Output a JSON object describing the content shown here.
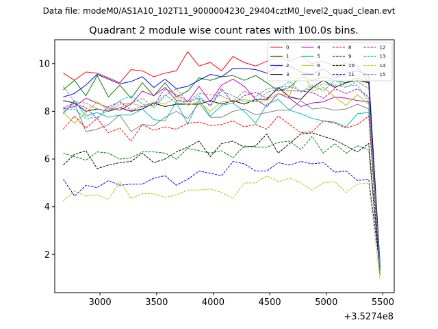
{
  "header_text": "Data file: modeM0/AS1A10_102T11_9000004230_29404cztM0_level2_quad_clean.evt",
  "chart_data": {
    "type": "line",
    "title": "Quadrant 2 module wise count rates with 100.0s bins.",
    "xlabel": "",
    "ylabel": "",
    "x_offset_label": "+3.5274e8",
    "xlim": [
      2600,
      5600
    ],
    "ylim": [
      0.4,
      11.0
    ],
    "x_ticks": [
      3000,
      3500,
      4000,
      4500,
      5000,
      5500
    ],
    "y_ticks": [
      2,
      4,
      6,
      8,
      10
    ],
    "grid": false,
    "legend_placement": "top-right",
    "x": [
      2675,
      2775,
      2875,
      2975,
      3075,
      3175,
      3275,
      3375,
      3475,
      3575,
      3675,
      3775,
      3875,
      3975,
      4075,
      4175,
      4275,
      4375,
      4475,
      4575,
      4675,
      4775,
      4875,
      4975,
      5075,
      5175,
      5275,
      5375,
      5475
    ],
    "series": [
      {
        "name": "0",
        "color": "#ff0000",
        "dash": "solid",
        "values": [
          9.6,
          9.3,
          9.65,
          9.6,
          9.4,
          9.2,
          9.75,
          9.7,
          9.45,
          9.6,
          9.7,
          10.5,
          9.9,
          10.05,
          9.7,
          10.3,
          10.05,
          9.9,
          10.1,
          10.3,
          10.1,
          10.3,
          10.0,
          10.1,
          9.9,
          10.0,
          9.9,
          9.2,
          1.5
        ]
      },
      {
        "name": "1",
        "color": "#008000",
        "dash": "solid",
        "values": [
          8.9,
          9.3,
          8.65,
          9.5,
          8.6,
          9.1,
          8.55,
          9.2,
          8.65,
          9.2,
          8.6,
          8.85,
          9.4,
          9.3,
          9.45,
          9.5,
          9.3,
          9.5,
          9.2,
          8.85,
          9.0,
          9.45,
          9.3,
          9.45,
          9.3,
          9.2,
          9.4,
          9.2,
          1.6
        ]
      },
      {
        "name": "2",
        "color": "#0000ff",
        "dash": "solid",
        "values": [
          8.6,
          8.75,
          9.1,
          9.55,
          9.35,
          9.15,
          9.25,
          9.45,
          9.0,
          9.35,
          8.95,
          9.05,
          9.3,
          9.55,
          9.45,
          9.8,
          9.8,
          9.75,
          9.6,
          9.9,
          9.9,
          9.65,
          9.55,
          9.8,
          9.4,
          9.6,
          9.7,
          9.5,
          1.55
        ]
      },
      {
        "name": "3",
        "color": "#000000",
        "dash": "solid",
        "values": [
          8.45,
          8.35,
          8.0,
          8.1,
          8.0,
          8.15,
          8.0,
          8.1,
          8.35,
          8.2,
          8.3,
          8.3,
          8.3,
          8.45,
          8.3,
          8.45,
          8.3,
          8.5,
          8.5,
          9.0,
          8.6,
          8.5,
          9.0,
          9.3,
          9.0,
          9.2,
          9.3,
          9.2,
          1.45
        ]
      },
      {
        "name": "4",
        "color": "#bf00bf",
        "dash": "solid",
        "values": [
          8.1,
          8.2,
          8.55,
          8.35,
          8.15,
          8.05,
          8.3,
          8.85,
          8.65,
          9.0,
          8.45,
          8.4,
          9.05,
          8.4,
          9.1,
          9.35,
          9.05,
          8.5,
          8.2,
          8.75,
          8.55,
          8.2,
          8.35,
          8.4,
          8.6,
          8.55,
          8.45,
          8.4,
          1.5
        ]
      },
      {
        "name": "5",
        "color": "#00bfbf",
        "dash": "solid",
        "values": [
          7.9,
          8.45,
          7.8,
          7.95,
          7.75,
          7.85,
          7.85,
          8.1,
          7.65,
          7.6,
          8.4,
          7.45,
          8.5,
          7.8,
          8.25,
          8.35,
          8.0,
          7.5,
          8.3,
          8.5,
          8.05,
          7.9,
          7.7,
          7.6,
          7.55,
          7.35,
          7.9,
          7.95,
          1.4
        ]
      },
      {
        "name": "6",
        "color": "#bfbf00",
        "dash": "solid",
        "values": [
          7.95,
          7.5,
          7.95,
          8.4,
          8.05,
          8.15,
          8.35,
          8.2,
          8.4,
          8.3,
          8.6,
          8.25,
          8.4,
          8.0,
          8.4,
          8.4,
          8.5,
          8.4,
          8.45,
          8.75,
          8.65,
          9.85,
          8.85,
          9.0,
          8.6,
          8.25,
          8.7,
          8.3,
          1.3
        ]
      },
      {
        "name": "7",
        "color": "#808080",
        "dash": "solid",
        "values": [
          7.95,
          8.35,
          7.15,
          7.25,
          7.45,
          7.85,
          7.15,
          7.45,
          7.4,
          7.75,
          8.0,
          7.7,
          8.35,
          7.75,
          7.75,
          8.0,
          8.1,
          7.85,
          7.95,
          8.05,
          8.05,
          8.45,
          8.1,
          8.15,
          8.05,
          8.1,
          8.3,
          8.1,
          1.2
        ]
      },
      {
        "name": "8",
        "color": "#ff0000",
        "dash": "dashed",
        "values": [
          7.25,
          7.8,
          7.3,
          7.7,
          7.1,
          7.3,
          6.75,
          7.45,
          7.2,
          7.35,
          7.25,
          7.5,
          7.55,
          7.4,
          7.45,
          7.6,
          7.35,
          7.45,
          7.25,
          7.8,
          7.45,
          7.1,
          7.15,
          7.6,
          7.5,
          7.3,
          7.45,
          7.8,
          1.3
        ]
      },
      {
        "name": "9",
        "color": "#008000",
        "dash": "dashed",
        "values": [
          6.25,
          6.1,
          5.95,
          6.3,
          6.25,
          6.0,
          6.05,
          6.3,
          6.3,
          6.25,
          6.0,
          6.45,
          6.35,
          6.25,
          6.35,
          6.05,
          6.55,
          6.5,
          6.5,
          6.7,
          6.75,
          6.4,
          6.95,
          6.25,
          6.65,
          6.25,
          6.55,
          6.4,
          1.15
        ]
      },
      {
        "name": "10",
        "color": "#000000",
        "dash": "dashed",
        "values": [
          5.75,
          6.2,
          6.35,
          5.6,
          5.75,
          5.85,
          5.9,
          6.25,
          5.85,
          6.0,
          6.3,
          6.5,
          6.75,
          6.1,
          6.65,
          6.75,
          6.5,
          6.55,
          7.05,
          6.25,
          6.65,
          7.05,
          7.1,
          6.95,
          6.8,
          6.55,
          6.3,
          6.65,
          1.35
        ]
      },
      {
        "name": "11",
        "color": "#0000ff",
        "dash": "dashed",
        "values": [
          5.15,
          4.45,
          4.9,
          4.8,
          5.1,
          4.9,
          4.95,
          4.95,
          5.2,
          5.3,
          4.9,
          5.15,
          5.5,
          5.4,
          5.3,
          5.9,
          5.8,
          5.5,
          5.5,
          5.85,
          5.75,
          5.9,
          5.8,
          5.85,
          5.45,
          5.5,
          5.1,
          5.15,
          1.45
        ]
      },
      {
        "name": "12",
        "color": "#bf00bf",
        "dash": "dashed",
        "values": [
          8.15,
          8.35,
          8.15,
          7.7,
          8.2,
          8.4,
          8.05,
          8.2,
          8.25,
          8.95,
          8.7,
          8.4,
          8.55,
          8.25,
          8.95,
          8.35,
          8.65,
          8.8,
          8.55,
          8.95,
          8.85,
          8.85,
          8.8,
          8.55,
          8.95,
          8.75,
          8.95,
          8.6,
          1.35
        ]
      },
      {
        "name": "13",
        "color": "#00bfbf",
        "dash": "dashed",
        "values": [
          8.05,
          8.1,
          7.7,
          7.75,
          8.05,
          8.45,
          8.65,
          8.3,
          8.25,
          8.7,
          8.35,
          8.3,
          8.65,
          8.2,
          8.85,
          8.65,
          8.4,
          8.4,
          8.8,
          8.95,
          9.25,
          8.8,
          9.1,
          8.85,
          9.3,
          9.05,
          9.1,
          8.4,
          1.4
        ]
      },
      {
        "name": "14",
        "color": "#bfbf00",
        "dash": "dashed",
        "values": [
          4.25,
          4.65,
          4.45,
          4.5,
          4.3,
          5.05,
          4.35,
          4.55,
          4.55,
          4.4,
          4.5,
          4.7,
          4.7,
          4.75,
          4.6,
          4.35,
          5.0,
          5.0,
          5.3,
          5.05,
          5.2,
          5.0,
          4.7,
          5.0,
          5.05,
          4.6,
          4.95,
          5.0,
          0.95
        ]
      },
      {
        "name": "15",
        "color": "#808080",
        "dash": "dashed",
        "values": [
          9.05,
          8.4,
          8.35,
          8.1,
          8.0,
          8.3,
          8.35,
          8.55,
          8.15,
          8.65,
          8.95,
          8.4,
          8.75,
          8.7,
          8.65,
          8.4,
          8.85,
          8.6,
          8.95,
          9.0,
          9.05,
          8.85,
          8.95,
          9.15,
          9.1,
          9.0,
          9.25,
          8.95,
          1.3
        ]
      }
    ]
  }
}
